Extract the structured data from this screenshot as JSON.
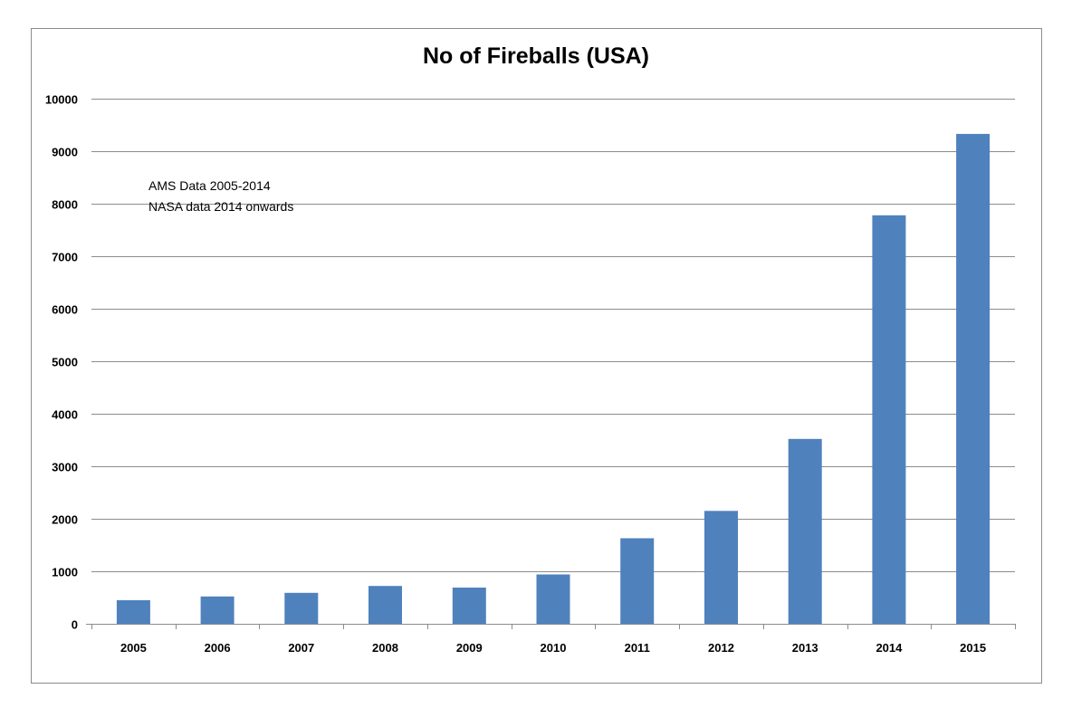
{
  "chart_data": {
    "type": "bar",
    "title": "No of Fireballs (USA)",
    "xlabel": "",
    "ylabel": "",
    "categories": [
      "2005",
      "2006",
      "2007",
      "2008",
      "2009",
      "2010",
      "2011",
      "2012",
      "2013",
      "2014",
      "2015"
    ],
    "values": [
      450,
      520,
      590,
      720,
      690,
      940,
      1630,
      2150,
      3520,
      7780,
      9330
    ],
    "ylim": [
      0,
      10000
    ],
    "yticks": [
      0,
      1000,
      2000,
      3000,
      4000,
      5000,
      6000,
      7000,
      8000,
      9000,
      10000
    ],
    "grid": true,
    "legend": "none",
    "bar_color": "#4f81bd",
    "annotations": [
      "AMS Data 2005-2014",
      "NASA data 2014 onwards"
    ]
  }
}
